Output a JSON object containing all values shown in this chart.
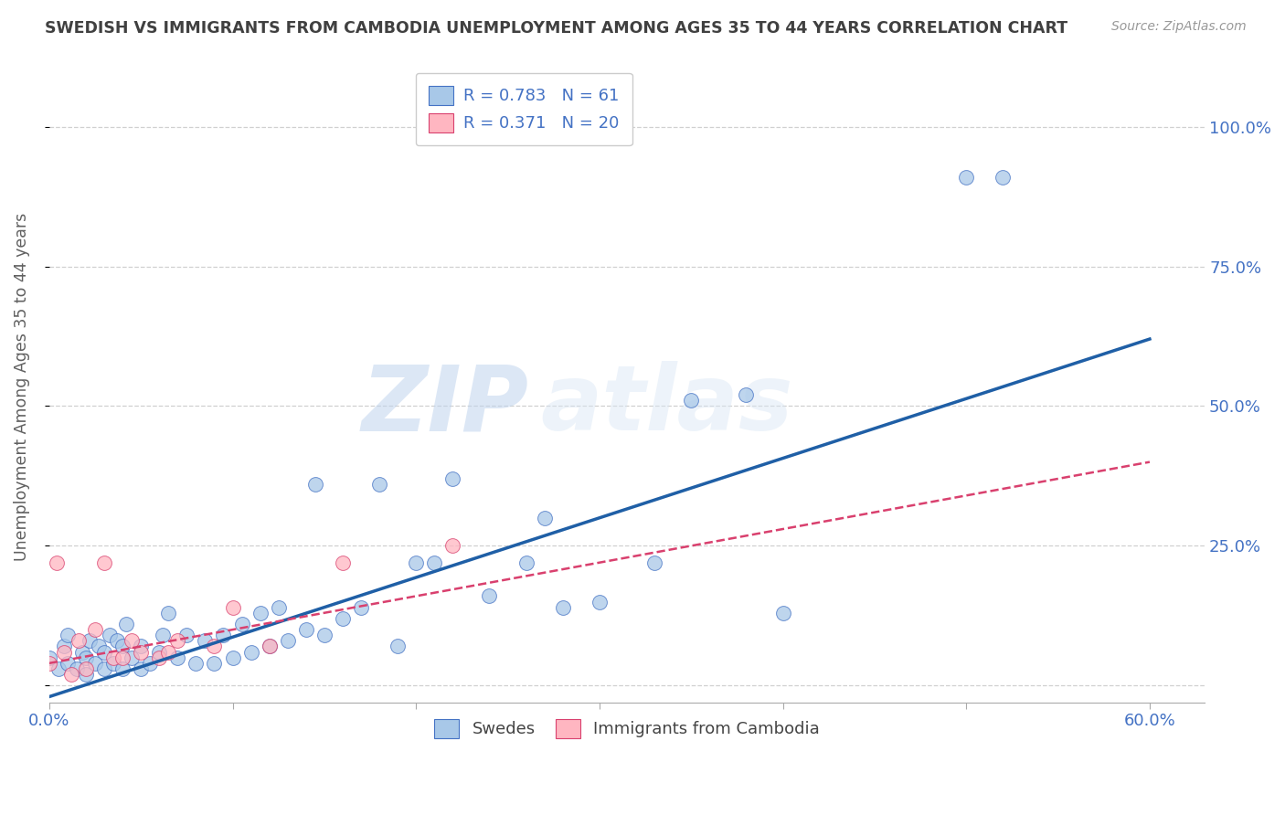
{
  "title": "SWEDISH VS IMMIGRANTS FROM CAMBODIA UNEMPLOYMENT AMONG AGES 35 TO 44 YEARS CORRELATION CHART",
  "source": "Source: ZipAtlas.com",
  "ylabel": "Unemployment Among Ages 35 to 44 years",
  "xlim": [
    0.0,
    0.63
  ],
  "ylim": [
    -0.03,
    1.1
  ],
  "ytick_positions": [
    0.0,
    0.25,
    0.5,
    0.75,
    1.0
  ],
  "yticklabels_right": [
    "",
    "25.0%",
    "50.0%",
    "75.0%",
    "100.0%"
  ],
  "xtick_positions": [
    0.0,
    0.1,
    0.2,
    0.3,
    0.4,
    0.5,
    0.6
  ],
  "xticklabels": [
    "0.0%",
    "",
    "",
    "",
    "",
    "",
    "60.0%"
  ],
  "blue_color": "#a8c8e8",
  "blue_edge": "#4472C4",
  "pink_color": "#ffb6c1",
  "pink_edge": "#d9406e",
  "blue_line_color": "#1f5fa6",
  "pink_line_color": "#d9406e",
  "R_blue": 0.783,
  "N_blue": 61,
  "R_pink": 0.371,
  "N_pink": 20,
  "blue_scatter_x": [
    0.0,
    0.005,
    0.008,
    0.01,
    0.01,
    0.015,
    0.018,
    0.02,
    0.02,
    0.022,
    0.025,
    0.027,
    0.03,
    0.03,
    0.033,
    0.035,
    0.037,
    0.04,
    0.04,
    0.042,
    0.045,
    0.05,
    0.05,
    0.055,
    0.06,
    0.062,
    0.065,
    0.07,
    0.075,
    0.08,
    0.085,
    0.09,
    0.095,
    0.1,
    0.105,
    0.11,
    0.115,
    0.12,
    0.125,
    0.13,
    0.14,
    0.145,
    0.15,
    0.16,
    0.17,
    0.18,
    0.19,
    0.2,
    0.21,
    0.22,
    0.24,
    0.26,
    0.27,
    0.28,
    0.3,
    0.33,
    0.35,
    0.38,
    0.4,
    0.5,
    0.52
  ],
  "blue_scatter_y": [
    0.05,
    0.03,
    0.07,
    0.04,
    0.09,
    0.03,
    0.06,
    0.02,
    0.05,
    0.08,
    0.04,
    0.07,
    0.03,
    0.06,
    0.09,
    0.04,
    0.08,
    0.03,
    0.07,
    0.11,
    0.05,
    0.03,
    0.07,
    0.04,
    0.06,
    0.09,
    0.13,
    0.05,
    0.09,
    0.04,
    0.08,
    0.04,
    0.09,
    0.05,
    0.11,
    0.06,
    0.13,
    0.07,
    0.14,
    0.08,
    0.1,
    0.36,
    0.09,
    0.12,
    0.14,
    0.36,
    0.07,
    0.22,
    0.22,
    0.37,
    0.16,
    0.22,
    0.3,
    0.14,
    0.15,
    0.22,
    0.51,
    0.52,
    0.13,
    0.91,
    0.91
  ],
  "pink_scatter_x": [
    0.0,
    0.004,
    0.008,
    0.012,
    0.016,
    0.02,
    0.025,
    0.03,
    0.035,
    0.04,
    0.045,
    0.05,
    0.06,
    0.065,
    0.07,
    0.09,
    0.1,
    0.12,
    0.16,
    0.22
  ],
  "pink_scatter_y": [
    0.04,
    0.22,
    0.06,
    0.02,
    0.08,
    0.03,
    0.1,
    0.22,
    0.05,
    0.05,
    0.08,
    0.06,
    0.05,
    0.06,
    0.08,
    0.07,
    0.14,
    0.07,
    0.22,
    0.25
  ],
  "blue_trend_x0": 0.0,
  "blue_trend_y0": -0.02,
  "blue_trend_x1": 0.6,
  "blue_trend_y1": 0.62,
  "pink_trend_x0": 0.0,
  "pink_trend_y0": 0.04,
  "pink_trend_x1": 0.6,
  "pink_trend_y1": 0.4,
  "legend_label_swedes": "Swedes",
  "legend_label_cambodia": "Immigrants from Cambodia",
  "watermark_zip": "ZIP",
  "watermark_atlas": "atlas",
  "bg_color": "#ffffff",
  "grid_color": "#d0d0d0",
  "title_color": "#404040",
  "axis_label_color": "#4472C4",
  "ylabel_color": "#606060"
}
